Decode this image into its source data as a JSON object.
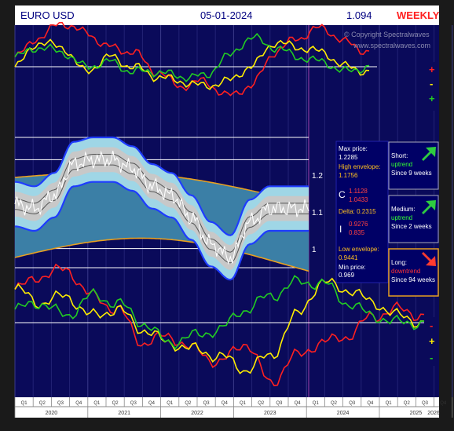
{
  "header": {
    "symbol": "EURO USD",
    "date": "05-01-2024",
    "price": "1.094",
    "period": "WEEKLY"
  },
  "copyright": {
    "line1": "© Copyright Spectralwaves",
    "line2": "www.spectralwaves.com"
  },
  "price_axis": {
    "labels": [
      "1.2",
      "1.1",
      "1"
    ]
  },
  "top_osc_signs": [
    "+",
    "-",
    "+"
  ],
  "bottom_osc_signs": [
    "-",
    "+",
    "-"
  ],
  "info_panel": {
    "max_price_label": "Max price:",
    "max_price": "1.2285",
    "high_env_label": "High envelope:",
    "high_env": "1.1756",
    "c_label": "C",
    "c_val1": "1.1128",
    "c_val2": "1.0433",
    "delta": "Delta: 0.2315",
    "i_label": "I",
    "i_val1": "0.9276",
    "i_val2": "0.835",
    "low_env_label": "Low envelope:",
    "low_env": "0.9441",
    "min_price_label": "Min price:",
    "min_price": "0.969"
  },
  "trends": [
    {
      "title": "Short:",
      "trend": "uptrend",
      "since": "Since 9 weeks",
      "trend_color": "#33ff33",
      "arrow": "up",
      "arrow_color": "#2ecc40"
    },
    {
      "title": "Medium:",
      "trend": "uptrend",
      "since": "Since 2 weeks",
      "trend_color": "#33ff33",
      "arrow": "up",
      "arrow_color": "#2ecc40"
    },
    {
      "title": "Long:",
      "trend": "downtrend",
      "since": "Since 94 weeks",
      "trend_color": "#ff3333",
      "arrow": "down",
      "arrow_color": "#ff3b30"
    }
  ],
  "quarters": [
    "Q1",
    "Q2",
    "Q3",
    "Q4",
    "Q1",
    "Q2",
    "Q3",
    "Q4",
    "Q1",
    "Q2",
    "Q3",
    "Q4",
    "Q1",
    "Q2",
    "Q3",
    "Q4",
    "Q1",
    "Q2",
    "Q3",
    "Q4",
    "Q1",
    "Q2",
    "Q3",
    "Q4",
    "Q1",
    "Q2",
    "Q3",
    "Q4"
  ],
  "years": [
    "2020",
    "2021",
    "2022",
    "2023",
    "2024",
    "2025",
    "2026"
  ],
  "colors": {
    "background": "#0a0a5a",
    "band_outer": "#3b7fa6",
    "band_inner": "#9fd6e6",
    "envelope": "#e8a020",
    "band_edge": "#1e3cff",
    "price": "#ffffff"
  },
  "chart_data": {
    "type": "line",
    "title": "EURO USD",
    "price_panel": {
      "ylim": [
        0.95,
        1.25
      ],
      "yticks": [
        1.2,
        1.1,
        1.0
      ],
      "x": [
        "2020-Q1",
        "2020-Q2",
        "2020-Q3",
        "2020-Q4",
        "2021-Q1",
        "2021-Q2",
        "2021-Q3",
        "2021-Q4",
        "2022-Q1",
        "2022-Q2",
        "2022-Q3",
        "2022-Q4",
        "2023-Q1",
        "2023-Q2",
        "2023-Q3",
        "2023-Q4"
      ],
      "series": [
        {
          "values": [
            1.1,
            1.09,
            1.12,
            1.19,
            1.2,
            1.2,
            1.18,
            1.14,
            1.12,
            1.07,
            1.01,
            0.98,
            1.06,
            1.09,
            1.09,
            1.09
          ]
        }
      ]
    },
    "oscillators_top": {
      "series": [
        {
          "color": "#ff2020",
          "values": [
            0.2,
            0.6,
            0.9,
            0.7,
            0.4,
            0.3,
            -0.1,
            -0.4,
            -0.3,
            -0.6,
            -0.4,
            0.3,
            0.6,
            0.8,
            0.5,
            0.3
          ]
        },
        {
          "color": "#ffee00",
          "values": [
            0.0,
            0.5,
            0.4,
            -0.1,
            0.2,
            0.0,
            -0.2,
            -0.3,
            -0.4,
            -0.3,
            0.0,
            0.5,
            0.4,
            0.3,
            0.0,
            -0.1
          ]
        },
        {
          "color": "#22cc22",
          "values": [
            0.2,
            0.4,
            0.3,
            0.0,
            0.1,
            -0.1,
            -0.1,
            -0.2,
            -0.2,
            0.2,
            0.6,
            0.4,
            0.2,
            0.1,
            -0.1,
            0.0
          ]
        }
      ]
    },
    "oscillators_bottom": {
      "series": [
        {
          "color": "#ff2020",
          "values": [
            0.5,
            0.7,
            0.8,
            0.4,
            0.2,
            -0.3,
            -0.2,
            -0.4,
            -0.6,
            -0.3,
            -0.9,
            -0.5,
            -0.3,
            -0.2,
            0.1,
            0.2,
            0.1
          ]
        },
        {
          "color": "#ffee00",
          "values": [
            0.5,
            0.3,
            0.4,
            0.1,
            0.2,
            -0.1,
            -0.3,
            -0.4,
            -0.5,
            -0.7,
            -0.5,
            0.1,
            0.6,
            0.5,
            0.3,
            0.1,
            0.0
          ]
        },
        {
          "color": "#22cc22",
          "values": [
            0.2,
            0.3,
            0.1,
            0.4,
            0.3,
            0.0,
            -0.3,
            -0.2,
            -0.1,
            0.2,
            0.4,
            0.6,
            0.6,
            0.3,
            0.1,
            0.0,
            0.0
          ]
        }
      ]
    }
  }
}
